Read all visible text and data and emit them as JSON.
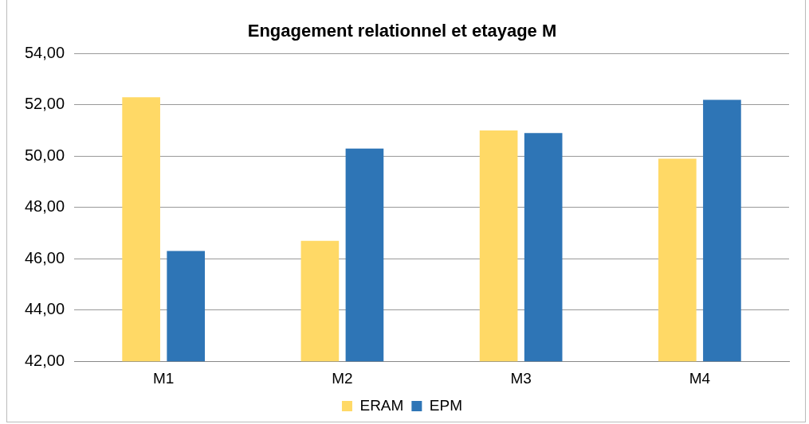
{
  "chart_data": {
    "type": "bar",
    "title": "Engagement relationnel et etayage M",
    "categories": [
      "M1",
      "M2",
      "M3",
      "M4"
    ],
    "series": [
      {
        "name": "ERAM",
        "color": "#ffd966",
        "values": [
          52.3,
          46.7,
          51.0,
          49.9
        ]
      },
      {
        "name": "EPM",
        "color": "#2e75b6",
        "values": [
          46.3,
          50.3,
          50.9,
          52.2
        ]
      }
    ],
    "ylim": [
      42,
      54
    ],
    "yticks": [
      {
        "value": 42,
        "label": "42,00"
      },
      {
        "value": 44,
        "label": "44,00"
      },
      {
        "value": 46,
        "label": "46,00"
      },
      {
        "value": 48,
        "label": "48,00"
      },
      {
        "value": 50,
        "label": "50,00"
      },
      {
        "value": 52,
        "label": "52,00"
      },
      {
        "value": 54,
        "label": "54,00"
      }
    ],
    "grid": "y",
    "legend": "bottom"
  }
}
